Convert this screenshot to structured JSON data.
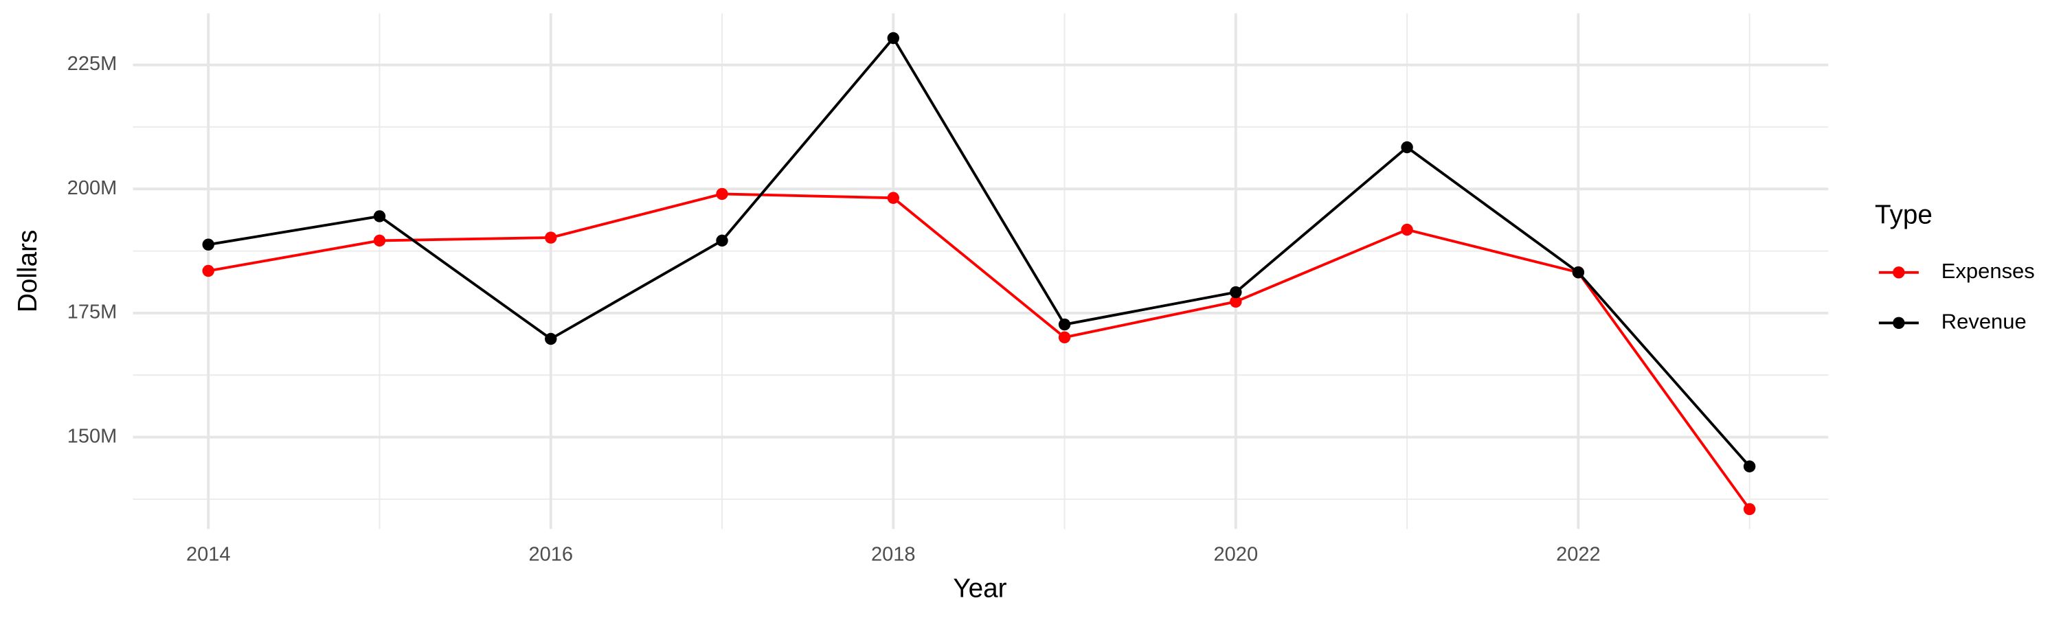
{
  "chart_data": {
    "type": "line",
    "x_label": "Year",
    "y_label": "Dollars",
    "x": [
      2014,
      2015,
      2016,
      2017,
      2018,
      2019,
      2020,
      2021,
      2022,
      2023
    ],
    "series": [
      {
        "name": "Expenses",
        "color": "#ff0000",
        "values": [
          183500000,
          189600000,
          190200000,
          199000000,
          198200000,
          170100000,
          177300000,
          191800000,
          183200000,
          135500000
        ]
      },
      {
        "name": "Revenue",
        "color": "#000000",
        "values": [
          188800000,
          194500000,
          169800000,
          189600000,
          230400000,
          172700000,
          179200000,
          208400000,
          183200000,
          144100000
        ]
      }
    ],
    "xlim": [
      2013.56,
      2023.46
    ],
    "xticks": [
      2014,
      2016,
      2018,
      2020,
      2022
    ],
    "ylim": [
      131500000,
      235400000
    ],
    "yticks": [
      {
        "value": 150000000,
        "label": "150M"
      },
      {
        "value": 175000000,
        "label": "175M"
      },
      {
        "value": 200000000,
        "label": "200M"
      },
      {
        "value": 225000000,
        "label": "225M"
      }
    ],
    "grid": true,
    "legend_title": "Type",
    "legend_position": "right"
  }
}
